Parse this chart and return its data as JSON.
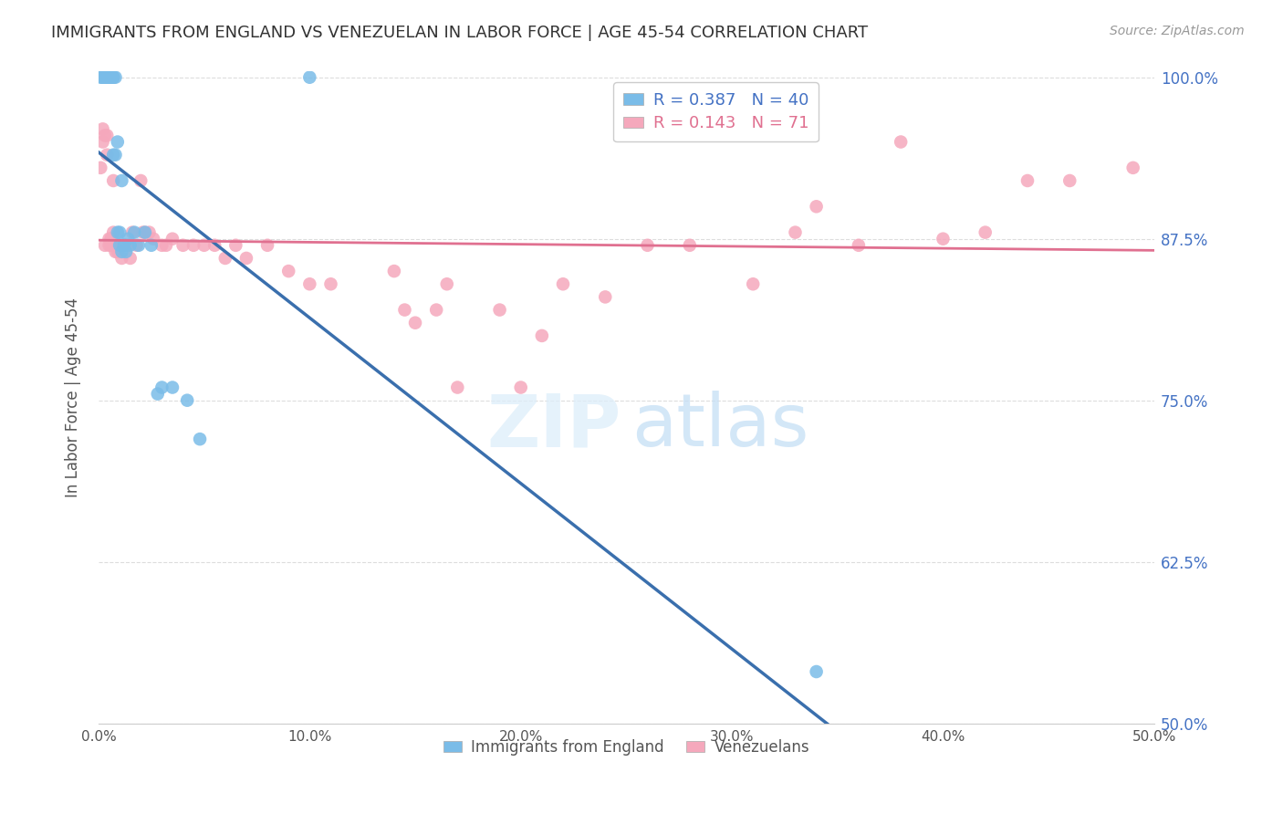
{
  "title": "IMMIGRANTS FROM ENGLAND VS VENEZUELAN IN LABOR FORCE | AGE 45-54 CORRELATION CHART",
  "source": "Source: ZipAtlas.com",
  "ylabel": "In Labor Force | Age 45-54",
  "xlim": [
    0.0,
    0.5
  ],
  "ylim": [
    0.5,
    1.005
  ],
  "xtick_labels": [
    "0.0%",
    "10.0%",
    "20.0%",
    "30.0%",
    "40.0%",
    "50.0%"
  ],
  "xtick_values": [
    0.0,
    0.1,
    0.2,
    0.3,
    0.4,
    0.5
  ],
  "ytick_labels": [
    "50.0%",
    "62.5%",
    "75.0%",
    "87.5%",
    "100.0%"
  ],
  "ytick_values": [
    0.5,
    0.625,
    0.75,
    0.875,
    1.0
  ],
  "legend_entries": [
    {
      "label": "R = 0.387   N = 40",
      "color": "#6aaed6"
    },
    {
      "label": "R = 0.143   N = 71",
      "color": "#f4a0b0"
    }
  ],
  "legend_bottom": [
    {
      "label": "Immigrants from England",
      "color": "#6aaed6"
    },
    {
      "label": "Venezuelans",
      "color": "#f4a0b0"
    }
  ],
  "blue_line_color": "#3a6fad",
  "pink_line_color": "#e07090",
  "blue_scatter_color": "#7abce8",
  "pink_scatter_color": "#f5a8bc",
  "background_color": "#ffffff",
  "grid_color": "#dddddd",
  "title_color": "#333333",
  "right_tick_color": "#4472c4",
  "blue_x": [
    0.001,
    0.002,
    0.002,
    0.003,
    0.003,
    0.004,
    0.004,
    0.004,
    0.005,
    0.005,
    0.005,
    0.006,
    0.006,
    0.006,
    0.007,
    0.007,
    0.007,
    0.008,
    0.008,
    0.009,
    0.009,
    0.01,
    0.01,
    0.011,
    0.011,
    0.012,
    0.013,
    0.014,
    0.015,
    0.017,
    0.019,
    0.022,
    0.025,
    0.028,
    0.03,
    0.035,
    0.042,
    0.048,
    0.1,
    0.34
  ],
  "blue_y": [
    1.0,
    1.0,
    1.0,
    1.0,
    1.0,
    1.0,
    1.0,
    1.0,
    1.0,
    1.0,
    1.0,
    1.0,
    1.0,
    1.0,
    1.0,
    1.0,
    0.94,
    0.94,
    1.0,
    0.95,
    0.88,
    0.88,
    0.87,
    0.92,
    0.865,
    0.87,
    0.865,
    0.875,
    0.87,
    0.88,
    0.87,
    0.88,
    0.87,
    0.755,
    0.76,
    0.76,
    0.75,
    0.72,
    1.0,
    0.54
  ],
  "pink_x": [
    0.001,
    0.002,
    0.002,
    0.003,
    0.003,
    0.004,
    0.004,
    0.005,
    0.005,
    0.006,
    0.006,
    0.006,
    0.007,
    0.007,
    0.008,
    0.008,
    0.009,
    0.009,
    0.01,
    0.01,
    0.011,
    0.011,
    0.012,
    0.012,
    0.013,
    0.014,
    0.015,
    0.016,
    0.018,
    0.02,
    0.021,
    0.022,
    0.024,
    0.026,
    0.03,
    0.032,
    0.035,
    0.04,
    0.045,
    0.05,
    0.055,
    0.06,
    0.065,
    0.07,
    0.08,
    0.09,
    0.1,
    0.11,
    0.14,
    0.145,
    0.15,
    0.16,
    0.165,
    0.17,
    0.19,
    0.2,
    0.21,
    0.22,
    0.24,
    0.26,
    0.28,
    0.31,
    0.33,
    0.34,
    0.36,
    0.38,
    0.4,
    0.42,
    0.44,
    0.46,
    0.49
  ],
  "pink_y": [
    0.93,
    0.96,
    0.95,
    0.955,
    0.87,
    0.94,
    0.955,
    0.875,
    0.87,
    0.875,
    0.875,
    0.87,
    0.92,
    0.88,
    0.865,
    0.87,
    0.865,
    0.87,
    0.87,
    0.87,
    0.86,
    0.87,
    0.87,
    0.87,
    0.87,
    0.87,
    0.86,
    0.88,
    0.87,
    0.92,
    0.88,
    0.88,
    0.88,
    0.875,
    0.87,
    0.87,
    0.875,
    0.87,
    0.87,
    0.87,
    0.87,
    0.86,
    0.87,
    0.86,
    0.87,
    0.85,
    0.84,
    0.84,
    0.85,
    0.82,
    0.81,
    0.82,
    0.84,
    0.76,
    0.82,
    0.76,
    0.8,
    0.84,
    0.83,
    0.87,
    0.87,
    0.84,
    0.88,
    0.9,
    0.87,
    0.95,
    0.875,
    0.88,
    0.92,
    0.92,
    0.93
  ]
}
